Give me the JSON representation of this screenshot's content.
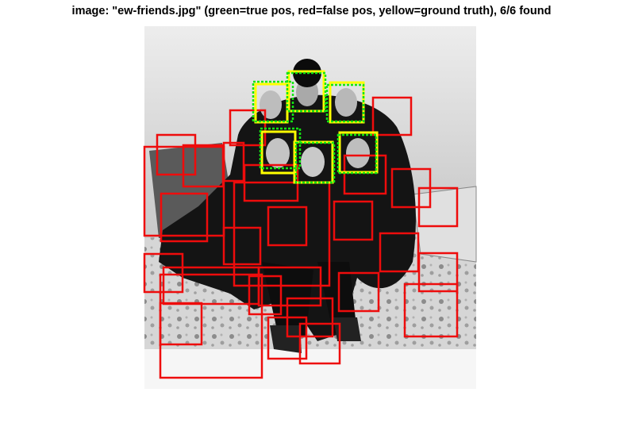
{
  "figure": {
    "title": "image: \"ew-friends.jpg\" (green=true pos, red=false pos, yellow=ground truth), 6/6 found"
  },
  "colors": {
    "true_pos": "#12e612",
    "false_pos": "#ee0c0c",
    "ground_truth": "#ffff00"
  },
  "icons": {
    "photo": "group-photo",
    "face": "face-icon"
  }
}
